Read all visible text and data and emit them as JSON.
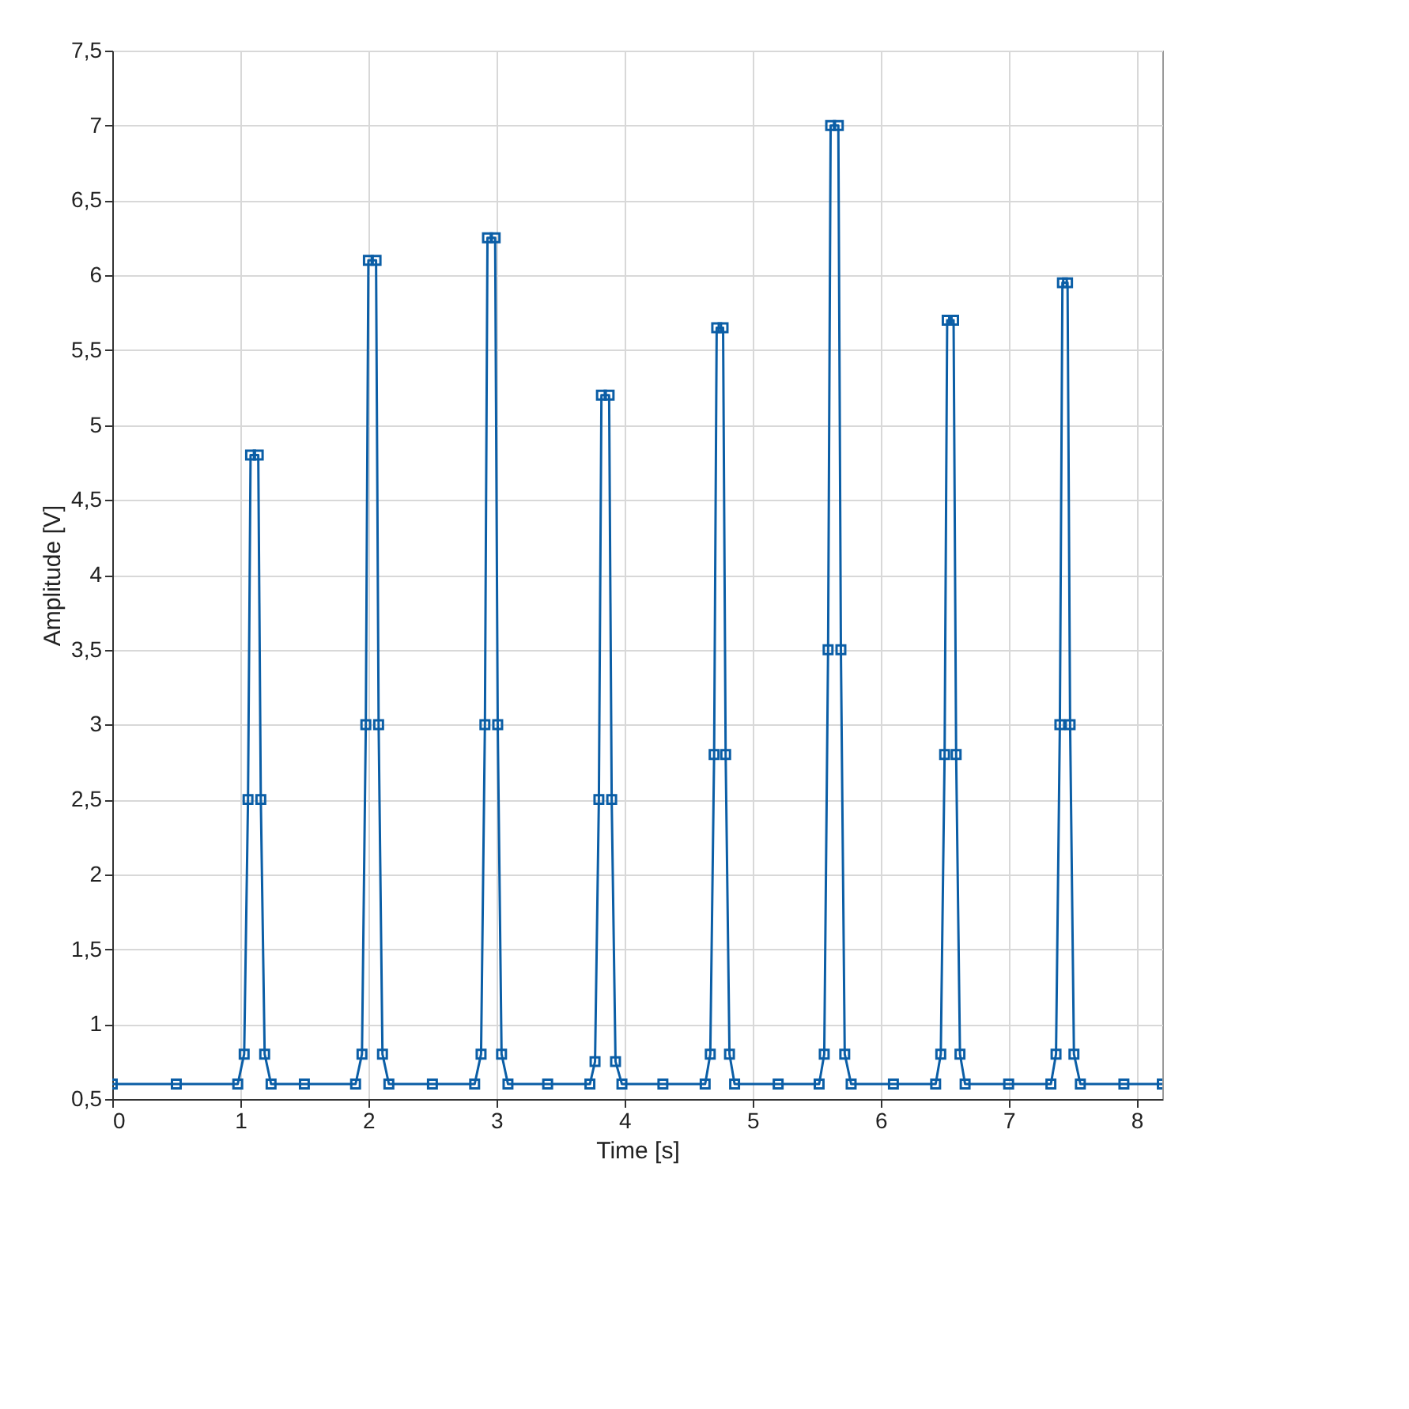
{
  "chart_data": {
    "type": "line",
    "xlabel": "Time [s]",
    "ylabel": "Amplitude [V]",
    "xlim": [
      0,
      8.2
    ],
    "xticks": [
      0,
      1,
      2,
      3,
      4,
      5,
      6,
      7,
      8
    ],
    "ylim": [
      0.5,
      7.5
    ],
    "yticks": [
      {
        "value": 0.5,
        "label": "0,5"
      },
      1,
      {
        "value": 1.5,
        "label": "1,5"
      },
      2,
      {
        "value": 2.5,
        "label": "2,5"
      },
      3,
      {
        "value": 3.5,
        "label": "3,5"
      },
      4,
      {
        "value": 4.5,
        "label": "4,5"
      },
      5,
      {
        "value": 5.5,
        "label": "5,5"
      },
      6,
      {
        "value": 6.5,
        "label": "6,5"
      },
      7,
      {
        "value": 7.5,
        "label": "7,5"
      }
    ],
    "grid": true,
    "marker": "square",
    "line_style": "solid",
    "series": [
      {
        "color": "#0b5ea6",
        "x": [
          0,
          0.5,
          0.98,
          1.03,
          1.06,
          1.08,
          1.14,
          1.16,
          1.19,
          1.24,
          1.5,
          1.9,
          1.95,
          1.98,
          2.0,
          2.06,
          2.08,
          2.11,
          2.16,
          2.5,
          2.83,
          2.88,
          2.91,
          2.93,
          2.99,
          3.01,
          3.04,
          3.09,
          3.4,
          3.73,
          3.77,
          3.8,
          3.82,
          3.88,
          3.9,
          3.93,
          3.98,
          4.3,
          4.63,
          4.67,
          4.7,
          4.72,
          4.77,
          4.79,
          4.82,
          4.86,
          5.2,
          5.52,
          5.56,
          5.59,
          5.61,
          5.67,
          5.69,
          5.72,
          5.77,
          6.1,
          6.43,
          6.47,
          6.5,
          6.52,
          6.57,
          6.59,
          6.62,
          6.66,
          7.0,
          7.33,
          7.37,
          7.4,
          7.42,
          7.46,
          7.48,
          7.51,
          7.56,
          7.9,
          8.2
        ],
        "values": [
          0.6,
          0.6,
          0.6,
          0.8,
          2.5,
          4.8,
          4.8,
          2.5,
          0.8,
          0.6,
          0.6,
          0.6,
          0.8,
          3.0,
          6.1,
          6.1,
          3.0,
          0.8,
          0.6,
          0.6,
          0.6,
          0.8,
          3.0,
          6.25,
          6.25,
          3.0,
          0.8,
          0.6,
          0.6,
          0.6,
          0.75,
          2.5,
          5.2,
          5.2,
          2.5,
          0.75,
          0.6,
          0.6,
          0.6,
          0.8,
          2.8,
          5.65,
          5.65,
          2.8,
          0.8,
          0.6,
          0.6,
          0.6,
          0.8,
          3.5,
          7.0,
          7.0,
          3.5,
          0.8,
          0.6,
          0.6,
          0.6,
          0.8,
          2.8,
          5.7,
          5.7,
          2.8,
          0.8,
          0.6,
          0.6,
          0.6,
          0.8,
          3.0,
          5.95,
          5.95,
          3.0,
          0.8,
          0.6,
          0.6,
          0.6
        ]
      }
    ]
  }
}
